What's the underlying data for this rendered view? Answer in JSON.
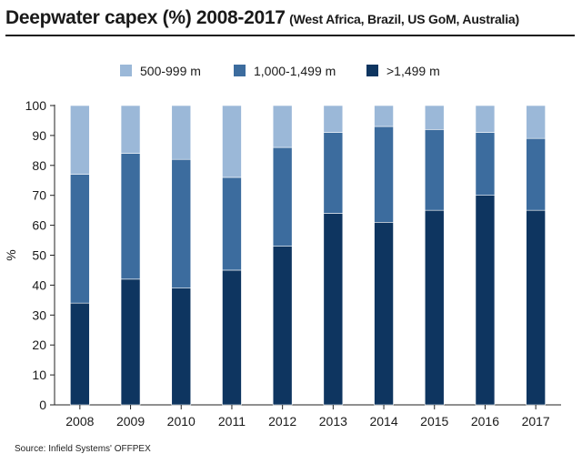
{
  "title": {
    "main": "Deepwater capex (%) 2008-2017",
    "sub": "(West Africa, Brazil, US GoM, Australia)"
  },
  "source": "Source: Infield Systems' OFFPEX",
  "chart_data": {
    "type": "bar",
    "stacked": true,
    "categories": [
      "2008",
      "2009",
      "2010",
      "2011",
      "2012",
      "2013",
      "2014",
      "2015",
      "2016",
      "2017"
    ],
    "series": [
      {
        "name": ">1,499 m",
        "color": "#0e3560",
        "values": [
          34,
          42,
          39,
          45,
          53,
          64,
          61,
          65,
          70,
          65
        ]
      },
      {
        "name": "1,000-1,499 m",
        "color": "#3c6c9e",
        "values": [
          43,
          42,
          43,
          31,
          33,
          27,
          32,
          27,
          21,
          24
        ]
      },
      {
        "name": "500-999 m",
        "color": "#9bb8d8",
        "values": [
          23,
          16,
          18,
          24,
          14,
          9,
          7,
          8,
          9,
          11
        ]
      }
    ],
    "legend_order": [
      "500-999 m",
      "1,000-1,499 m",
      ">1,499 m"
    ],
    "legend_position": "top",
    "xlabel": "",
    "ylabel": "%",
    "ylim": [
      0,
      100
    ],
    "yticks": [
      0,
      10,
      20,
      30,
      40,
      50,
      60,
      70,
      80,
      90,
      100
    ],
    "grid": false
  }
}
